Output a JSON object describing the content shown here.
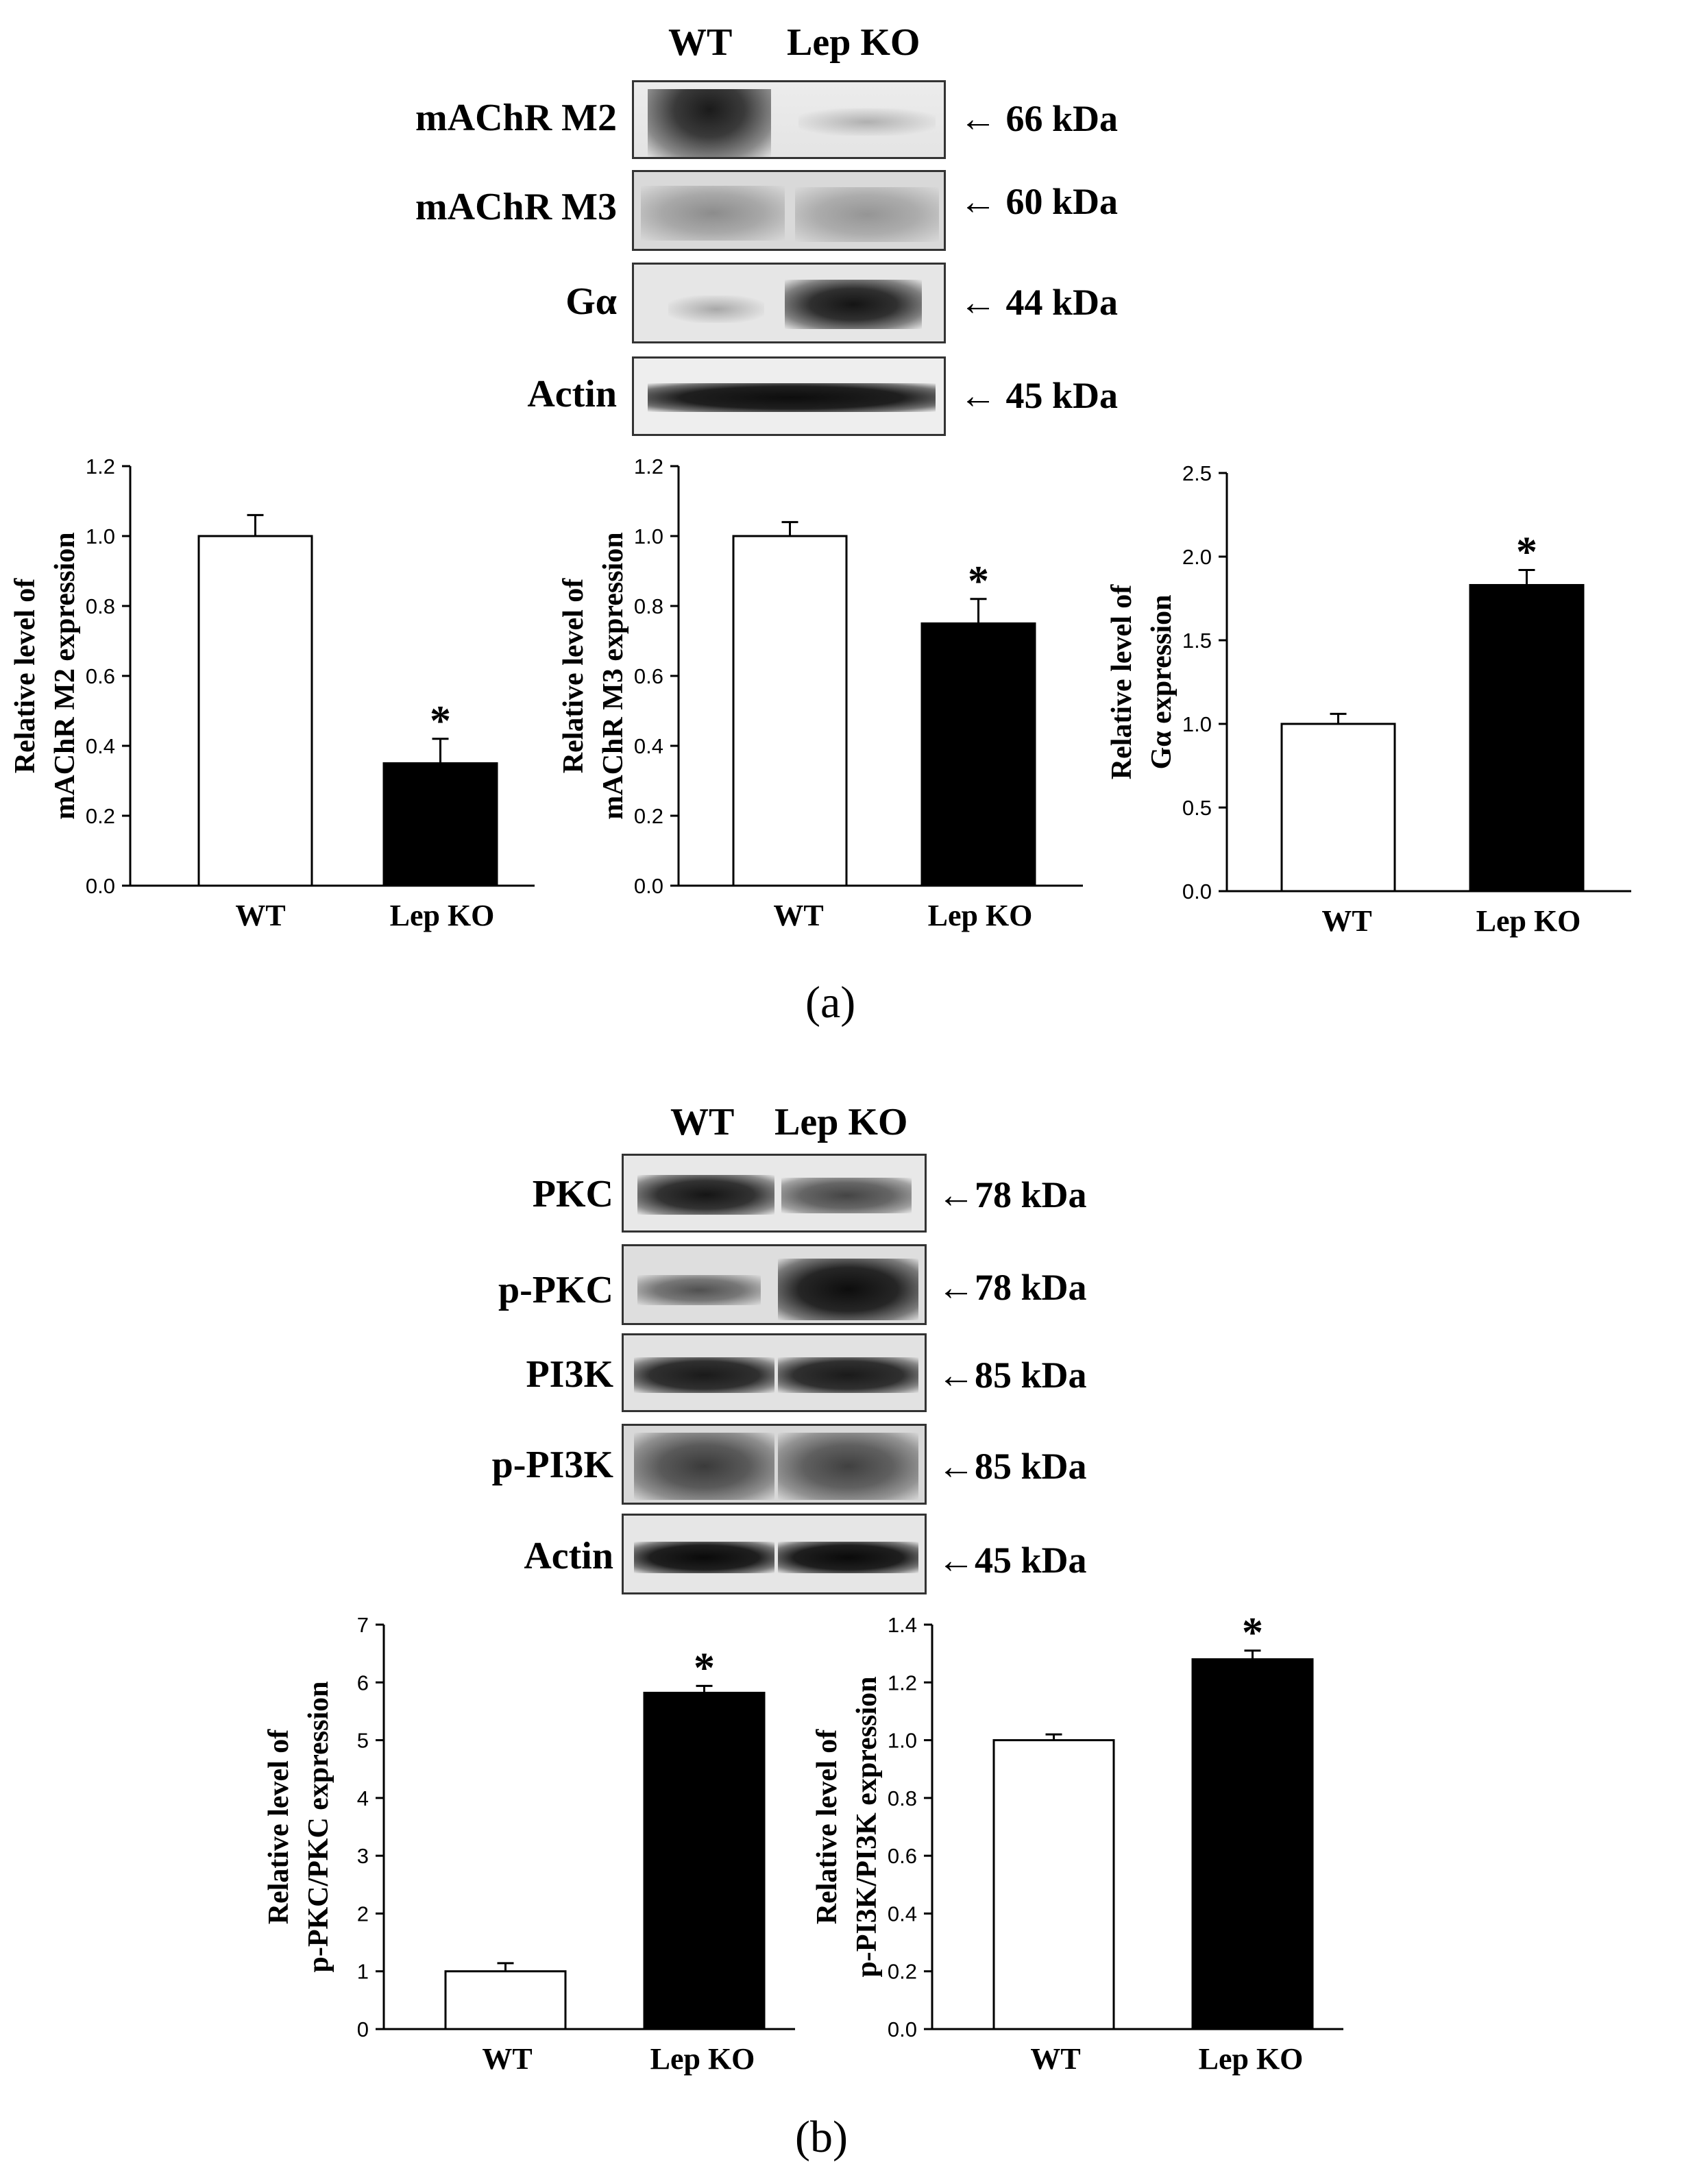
{
  "panel_a": {
    "label": "(a)",
    "lanes": [
      "WT",
      "Lep KO"
    ],
    "blots": [
      {
        "name": "mAChR M2",
        "kda": "66 kDa"
      },
      {
        "name": "mAChR M3",
        "kda": "60 kDa"
      },
      {
        "name": "Gα",
        "kda": "44 kDa"
      },
      {
        "name": "Actin",
        "kda": "45 kDa"
      }
    ]
  },
  "panel_b": {
    "label": "(b)",
    "lanes": [
      "WT",
      "Lep KO"
    ],
    "blots": [
      {
        "name": "PKC",
        "kda": "78 kDa"
      },
      {
        "name": "p-PKC",
        "kda": "78 kDa"
      },
      {
        "name": "PI3K",
        "kda": "85 kDa"
      },
      {
        "name": "p-PI3K",
        "kda": "85 kDa"
      },
      {
        "name": "Actin",
        "kda": "45 kDa"
      }
    ]
  },
  "chart_data": [
    {
      "type": "bar",
      "categories": [
        "WT",
        "Lep KO"
      ],
      "values": [
        1.0,
        0.35
      ],
      "errors": [
        0.06,
        0.07
      ],
      "significance": [
        "",
        "*"
      ],
      "ylabel": [
        "Relative level of",
        "mAChR M2 expression"
      ],
      "ylim": [
        0,
        1.2
      ],
      "yticks": [
        "0.0",
        "0.2",
        "0.4",
        "0.6",
        "0.8",
        "1.0",
        "1.2"
      ],
      "bar_colors": [
        "#ffffff",
        "#000000"
      ]
    },
    {
      "type": "bar",
      "categories": [
        "WT",
        "Lep KO"
      ],
      "values": [
        1.0,
        0.75
      ],
      "errors": [
        0.04,
        0.07
      ],
      "significance": [
        "",
        "*"
      ],
      "ylabel": [
        "Relative level of",
        "mAChR M3 expression"
      ],
      "ylim": [
        0,
        1.2
      ],
      "yticks": [
        "0.0",
        "0.2",
        "0.4",
        "0.6",
        "0.8",
        "1.0",
        "1.2"
      ],
      "bar_colors": [
        "#ffffff",
        "#000000"
      ]
    },
    {
      "type": "bar",
      "categories": [
        "WT",
        "Lep KO"
      ],
      "values": [
        1.0,
        1.83
      ],
      "errors": [
        0.06,
        0.09
      ],
      "significance": [
        "",
        "*"
      ],
      "ylabel": [
        "Relative level of",
        "Gα expression"
      ],
      "ylim": [
        0,
        2.5
      ],
      "yticks": [
        "0.0",
        "0.5",
        "1.0",
        "1.5",
        "2.0",
        "2.5"
      ],
      "bar_colors": [
        "#ffffff",
        "#000000"
      ]
    },
    {
      "type": "bar",
      "categories": [
        "WT",
        "Lep KO"
      ],
      "values": [
        1.0,
        5.82
      ],
      "errors": [
        0.14,
        0.12
      ],
      "significance": [
        "",
        "*"
      ],
      "ylabel": [
        "Relative level of",
        "p-PKC/PKC expression"
      ],
      "ylim": [
        0,
        7
      ],
      "yticks": [
        "0",
        "1",
        "2",
        "3",
        "4",
        "5",
        "6",
        "7"
      ],
      "bar_colors": [
        "#ffffff",
        "#000000"
      ]
    },
    {
      "type": "bar",
      "categories": [
        "WT",
        "Lep KO"
      ],
      "values": [
        1.0,
        1.28
      ],
      "errors": [
        0.02,
        0.03
      ],
      "significance": [
        "",
        "*"
      ],
      "ylabel": [
        "Relative level of",
        "p-PI3K/PI3K expression"
      ],
      "ylim": [
        0,
        1.4
      ],
      "yticks": [
        "0.0",
        "0.2",
        "0.4",
        "0.6",
        "0.8",
        "1.0",
        "1.2",
        "1.4"
      ],
      "bar_colors": [
        "#ffffff",
        "#000000"
      ]
    }
  ]
}
